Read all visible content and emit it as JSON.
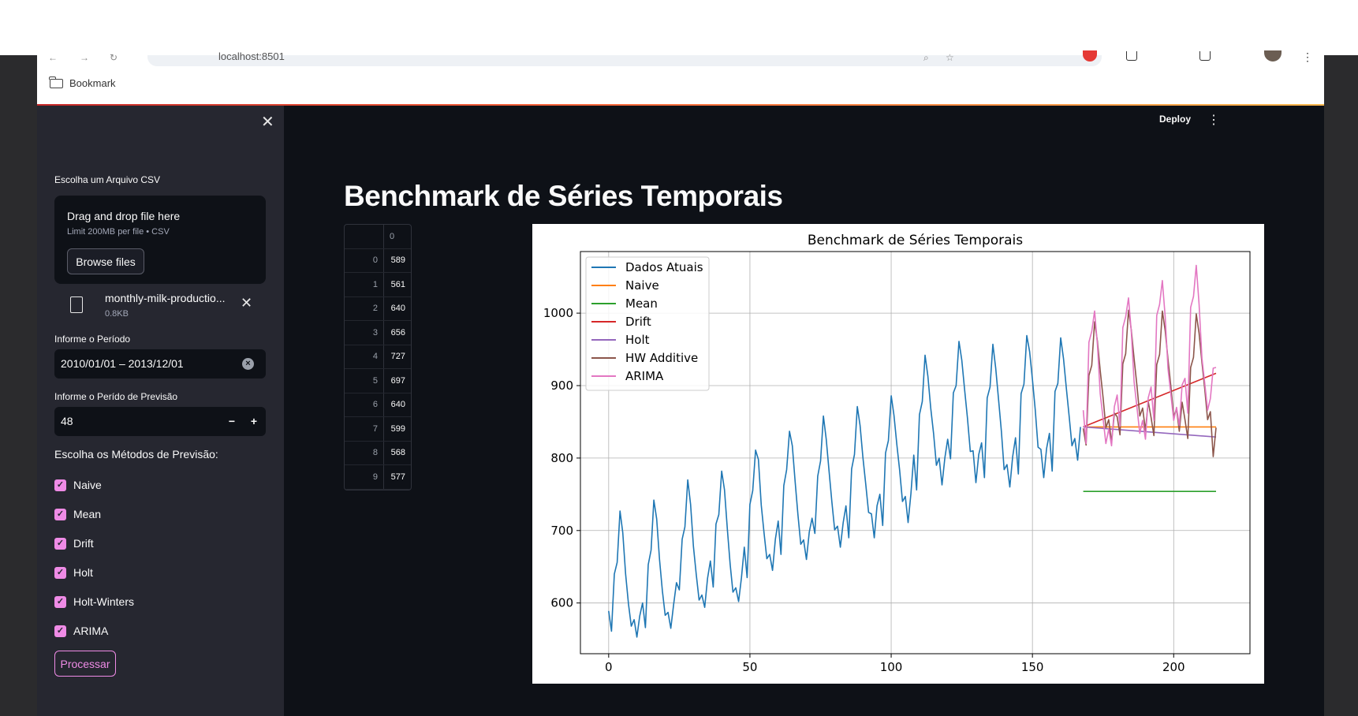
{
  "browser": {
    "url": "localhost:8501",
    "bookmark_label": "Bookmark"
  },
  "sidebar": {
    "file_label": "Escolha um Arquivo CSV",
    "dropzone_title": "Drag and drop file here",
    "dropzone_limit": "Limit 200MB per file • CSV",
    "browse_label": "Browse files",
    "uploaded_file": {
      "name": "monthly-milk-productio...",
      "size": "0.8KB"
    },
    "period_label": "Informe o Período",
    "period_value": "2010/01/01 – 2013/12/01",
    "forecast_label": "Informe o Perído de Previsão",
    "forecast_value": "48",
    "methods_label": "Escolha os Métodos de Previsão:",
    "methods": [
      {
        "label": "Naive",
        "checked": true
      },
      {
        "label": "Mean",
        "checked": true
      },
      {
        "label": "Drift",
        "checked": true
      },
      {
        "label": "Holt",
        "checked": true
      },
      {
        "label": "Holt-Winters",
        "checked": true
      },
      {
        "label": "ARIMA",
        "checked": true
      }
    ],
    "process_label": "Processar"
  },
  "header": {
    "deploy_label": "Deploy"
  },
  "main": {
    "title": "Benchmark de Séries Temporais",
    "dataframe": {
      "column": "0",
      "rows": [
        {
          "index": "0",
          "value": "589"
        },
        {
          "index": "1",
          "value": "561"
        },
        {
          "index": "2",
          "value": "640"
        },
        {
          "index": "3",
          "value": "656"
        },
        {
          "index": "4",
          "value": "727"
        },
        {
          "index": "5",
          "value": "697"
        },
        {
          "index": "6",
          "value": "640"
        },
        {
          "index": "7",
          "value": "599"
        },
        {
          "index": "8",
          "value": "568"
        },
        {
          "index": "9",
          "value": "577"
        }
      ]
    }
  },
  "chart_data": {
    "type": "line",
    "title": "Benchmark de Séries Temporais",
    "xlabel": "",
    "ylabel": "",
    "xlim": [
      -10,
      227
    ],
    "ylim": [
      530,
      1085
    ],
    "xticks": [
      0,
      50,
      100,
      150,
      200
    ],
    "yticks": [
      600,
      700,
      800,
      900,
      1000
    ],
    "grid": true,
    "legend_position": "top-left",
    "series": [
      {
        "name": "Dados Atuais",
        "color": "#1f77b4",
        "x_start": 0,
        "values": [
          589,
          561,
          640,
          656,
          727,
          697,
          640,
          599,
          568,
          577,
          553,
          582,
          600,
          566,
          653,
          673,
          742,
          716,
          660,
          617,
          583,
          587,
          565,
          598,
          628,
          618,
          688,
          705,
          770,
          736,
          678,
          639,
          604,
          611,
          594,
          634,
          658,
          622,
          709,
          722,
          782,
          756,
          702,
          653,
          615,
          621,
          602,
          635,
          677,
          635,
          736,
          755,
          811,
          798,
          735,
          697,
          661,
          667,
          645,
          688,
          713,
          667,
          762,
          784,
          837,
          817,
          767,
          722,
          681,
          687,
          660,
          698,
          717,
          696,
          775,
          796,
          858,
          826,
          783,
          740,
          701,
          706,
          677,
          711,
          734,
          690,
          785,
          805,
          871,
          845,
          801,
          764,
          725,
          723,
          690,
          734,
          750,
          707,
          807,
          824,
          886,
          859,
          819,
          783,
          740,
          747,
          711,
          751,
          804,
          756,
          860,
          878,
          942,
          913,
          869,
          834,
          790,
          800,
          763,
          800,
          826,
          799,
          890,
          900,
          961,
          935,
          894,
          855,
          809,
          810,
          766,
          805,
          821,
          773,
          883,
          898,
          957,
          924,
          881,
          837,
          784,
          791,
          760,
          802,
          828,
          778,
          889,
          902,
          969,
          947,
          908,
          867,
          815,
          812,
          773,
          813,
          834,
          782,
          892,
          903,
          966,
          937,
          896,
          858,
          817,
          827,
          797,
          843
        ]
      },
      {
        "name": "Naive",
        "color": "#ff7f0e",
        "x": [
          168,
          215
        ],
        "y": [
          843,
          843
        ]
      },
      {
        "name": "Mean",
        "color": "#2ca02c",
        "x": [
          168,
          215
        ],
        "y": [
          754,
          754
        ]
      },
      {
        "name": "Drift",
        "color": "#d62728",
        "x": [
          168,
          215
        ],
        "y": [
          843,
          917
        ]
      },
      {
        "name": "Holt",
        "color": "#9467bd",
        "x": [
          168,
          215
        ],
        "y": [
          843,
          829
        ]
      },
      {
        "name": "HW Additive",
        "color": "#8c564b",
        "x_start": 168,
        "values": [
          841,
          818,
          914,
          928,
          988,
          961,
          921,
          884,
          842,
          853,
          822,
          862,
          857,
          832,
          930,
          944,
          1004,
          977,
          937,
          900,
          858,
          869,
          838,
          878,
          856,
          831,
          929,
          943,
          1003,
          976,
          936,
          899,
          857,
          868,
          837,
          877,
          853,
          827,
          925,
          939,
          999,
          972,
          932,
          895,
          853,
          864,
          802,
          842
        ]
      },
      {
        "name": "ARIMA",
        "color": "#e377c2",
        "x_start": 168,
        "values": [
          866,
          820,
          960,
          975,
          1003,
          956,
          889,
          855,
          820,
          840,
          817,
          871,
          887,
          844,
          980,
          995,
          1021,
          975,
          905,
          870,
          834,
          852,
          826,
          883,
          898,
          852,
          997,
          1012,
          1045,
          995,
          923,
          888,
          852,
          870,
          845,
          901,
          910,
          862,
          1008,
          1023,
          1066,
          1012,
          938,
          903,
          866,
          882,
          924,
          925
        ]
      }
    ]
  }
}
